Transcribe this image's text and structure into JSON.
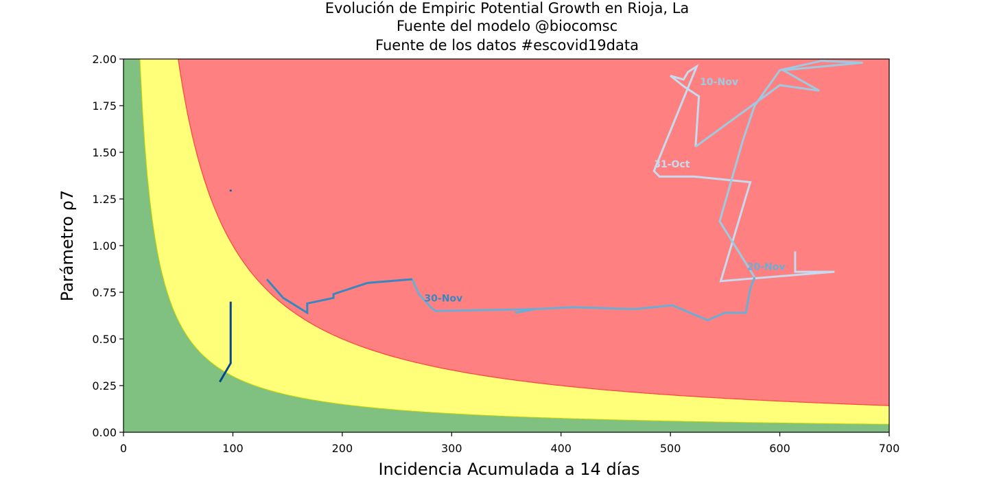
{
  "chart_data": {
    "type": "line",
    "title_lines": [
      "Evolución de Empiric Potential Growth en Rioja, La",
      "Fuente del modelo @biocomsc",
      "Fuente de los datos #escovid19data"
    ],
    "xlabel": "Incidencia Acumulada a 14 días",
    "ylabel": "Parámetro ρ7",
    "xlim": [
      0,
      700
    ],
    "ylim": [
      0,
      2.0
    ],
    "xticks": [
      "0",
      "100",
      "200",
      "300",
      "400",
      "500",
      "600",
      "700"
    ],
    "yticks": [
      "0.00",
      "0.25",
      "0.50",
      "0.75",
      "1.00",
      "1.25",
      "1.50",
      "1.75",
      "2.00"
    ],
    "grid": false,
    "zones": [
      {
        "name": "green",
        "color": "#80c080",
        "epg_max": 30
      },
      {
        "name": "yellow",
        "color": "#ffff7a",
        "epg_max": 100
      },
      {
        "name": "red",
        "color": "#ff8080"
      }
    ],
    "series": [
      {
        "color": "#c6dbef",
        "points": [
          [
            614,
            0.97
          ],
          [
            614,
            0.86
          ],
          [
            650,
            0.86
          ],
          [
            546,
            0.81
          ],
          [
            573,
            1.34
          ],
          [
            522,
            1.37
          ],
          [
            490,
            1.37
          ],
          [
            485,
            1.4
          ],
          [
            524,
            1.96
          ],
          [
            516,
            1.93
          ],
          [
            512,
            1.89
          ],
          [
            500,
            1.91
          ],
          [
            513,
            1.85
          ],
          [
            526,
            1.8
          ],
          [
            523,
            1.53
          ]
        ]
      },
      {
        "color": "#9ecae1",
        "points": [
          [
            523,
            1.53
          ],
          [
            600,
            1.86
          ],
          [
            636,
            1.83
          ],
          [
            603,
            1.94
          ],
          [
            676,
            1.98
          ],
          [
            638,
            1.99
          ],
          [
            600,
            1.94
          ],
          [
            577,
            1.75
          ],
          [
            566,
            1.56
          ],
          [
            545,
            1.13
          ],
          [
            577,
            0.83
          ]
        ]
      },
      {
        "color": "#6aaed6",
        "points": [
          [
            577,
            0.83
          ],
          [
            573,
            0.77
          ],
          [
            569,
            0.64
          ],
          [
            550,
            0.64
          ],
          [
            534,
            0.6
          ],
          [
            502,
            0.68
          ],
          [
            467,
            0.66
          ],
          [
            412,
            0.67
          ],
          [
            375,
            0.66
          ],
          [
            358,
            0.64
          ],
          [
            377,
            0.66
          ],
          [
            285,
            0.65
          ],
          [
            281,
            0.67
          ],
          [
            270,
            0.74
          ],
          [
            264,
            0.82
          ]
        ]
      },
      {
        "color": "#3787c0",
        "points": [
          [
            264,
            0.82
          ],
          [
            223,
            0.8
          ],
          [
            192,
            0.74
          ],
          [
            192,
            0.72
          ],
          [
            168,
            0.69
          ],
          [
            168,
            0.64
          ],
          [
            146,
            0.72
          ],
          [
            131,
            0.82
          ]
        ]
      },
      {
        "color": "#1a5fa5",
        "points": [
          [
            98,
            1.29
          ],
          [
            98,
            1.3
          ]
        ]
      },
      {
        "color": "#08468b",
        "points": [
          [
            98,
            0.7
          ],
          [
            98,
            0.4
          ],
          [
            98,
            0.37
          ],
          [
            88,
            0.27
          ]
        ]
      }
    ],
    "annotations": [
      {
        "text": "10-Nov",
        "x": 527,
        "y": 1.86,
        "color": "#9ecae1"
      },
      {
        "text": "31-Oct",
        "x": 485,
        "y": 1.42,
        "color": "#c6dbef"
      },
      {
        "text": "20-Nov",
        "x": 570,
        "y": 0.87,
        "color": "#6aaed6"
      },
      {
        "text": "30-Nov",
        "x": 275,
        "y": 0.7,
        "color": "#3787c0"
      }
    ]
  }
}
